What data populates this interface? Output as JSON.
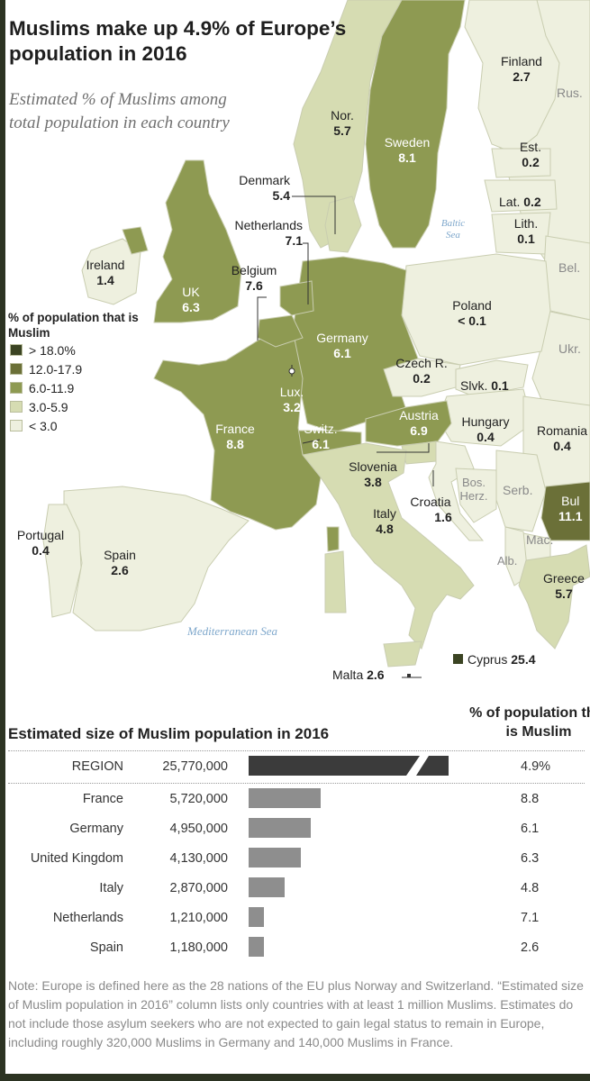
{
  "title": "Muslims make up 4.9% of Europe’s population in 2016",
  "subtitle": "Estimated % of Muslims among total population in each country",
  "legend": {
    "title": "% of population that is Muslim",
    "items": [
      {
        "label": "> 18.0%",
        "color": "#3b4423"
      },
      {
        "label": "12.0-17.9",
        "color": "#6b7038"
      },
      {
        "label": "6.0-11.9",
        "color": "#8e9a52"
      },
      {
        "label": "3.0-5.9",
        "color": "#d6dcb2"
      },
      {
        "label": "< 3.0",
        "color": "#eef0df"
      }
    ]
  },
  "countries": {
    "finland": {
      "name": "Finland",
      "value": "2.7"
    },
    "russia": {
      "name": "Rus."
    },
    "norway": {
      "name": "Nor.",
      "value": "5.7"
    },
    "sweden": {
      "name": "Sweden",
      "value": "8.1"
    },
    "estonia": {
      "name": "Est.",
      "value": "0.2"
    },
    "denmark": {
      "name": "Denmark",
      "value": "5.4"
    },
    "latvia": {
      "name": "Lat.",
      "value": "0.2"
    },
    "lithuania": {
      "name": "Lith.",
      "value": "0.1"
    },
    "netherlands": {
      "name": "Netherlands",
      "value": "7.1"
    },
    "belarus": {
      "name": "Bel."
    },
    "ireland": {
      "name": "Ireland",
      "value": "1.4"
    },
    "belgium": {
      "name": "Belgium",
      "value": "7.6"
    },
    "uk": {
      "name": "UK",
      "value": "6.3"
    },
    "poland": {
      "name": "Poland",
      "value": "< 0.1"
    },
    "germany": {
      "name": "Germany",
      "value": "6.1"
    },
    "ukraine": {
      "name": "Ukr."
    },
    "czech": {
      "name": "Czech R.",
      "value": "0.2"
    },
    "luxembourg": {
      "name": "Lux.",
      "value": "3.2"
    },
    "slovakia": {
      "name": "Slvk.",
      "value": "0.1"
    },
    "austria": {
      "name": "Austria",
      "value": "6.9"
    },
    "hungary": {
      "name": "Hungary",
      "value": "0.4"
    },
    "romania": {
      "name": "Romania",
      "value": "0.4"
    },
    "france": {
      "name": "France",
      "value": "8.8"
    },
    "switzerland": {
      "name": "Switz.",
      "value": "6.1"
    },
    "slovenia": {
      "name": "Slovenia",
      "value": "3.8"
    },
    "bosnia": {
      "name": "Bos.-Herz."
    },
    "serbia": {
      "name": "Serb."
    },
    "croatia": {
      "name": "Croatia",
      "value": "1.6"
    },
    "bulgaria": {
      "name": "Bul",
      "value": "11.1"
    },
    "italy": {
      "name": "Italy",
      "value": "4.8"
    },
    "portugal": {
      "name": "Portugal",
      "value": "0.4"
    },
    "spain": {
      "name": "Spain",
      "value": "2.6"
    },
    "macedonia": {
      "name": "Mac."
    },
    "albania": {
      "name": "Alb."
    },
    "greece": {
      "name": "Greece",
      "value": "5.7"
    },
    "cyprus": {
      "name": "Cyprus",
      "value": "25.4"
    },
    "malta": {
      "name": "Malta",
      "value": "2.6"
    }
  },
  "seas": {
    "baltic": "Baltic Sea",
    "mediterranean": "Mediterranean Sea"
  },
  "table": {
    "title": "Estimated size of Muslim population in 2016",
    "pct_header": "% of population that is Muslim",
    "region": {
      "name": "REGION",
      "count": "25,770,000",
      "count_value": 25770000,
      "pct": "4.9%"
    },
    "rows": [
      {
        "name": "France",
        "count": "5,720,000",
        "count_value": 5720000,
        "pct": "8.8"
      },
      {
        "name": "Germany",
        "count": "4,950,000",
        "count_value": 4950000,
        "pct": "6.1"
      },
      {
        "name": "United Kingdom",
        "count": "4,130,000",
        "count_value": 4130000,
        "pct": "6.3"
      },
      {
        "name": "Italy",
        "count": "2,870,000",
        "count_value": 2870000,
        "pct": "4.8"
      },
      {
        "name": "Netherlands",
        "count": "1,210,000",
        "count_value": 1210000,
        "pct": "7.1"
      },
      {
        "name": "Spain",
        "count": "1,180,000",
        "count_value": 1180000,
        "pct": "2.6"
      }
    ]
  },
  "note": "Note: Europe is defined here as the 28 nations of the EU plus Norway and Switzerland. “Estimated size of Muslim population in 2016” column lists only countries with at least 1 million Muslims. Estimates do not include those asylum seekers who are not expected to gain legal status to remain in Europe, including roughly 320,000 Muslims in Germany and 140,000 Muslims in France."
}
